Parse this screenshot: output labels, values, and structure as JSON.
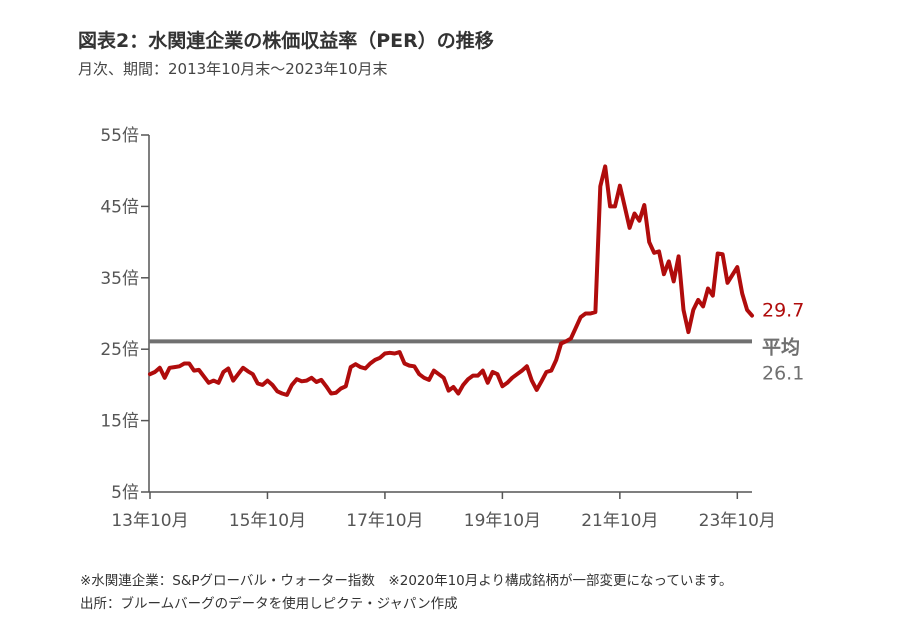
{
  "header": {
    "title": "図表2：水関連企業の株価収益率（PER）の推移",
    "subtitle": "月次、期間：2013年10月末～2023年10月末"
  },
  "notes": {
    "line1": "※水関連企業：S&Pグローバル・ウォーター指数　※2020年10月より構成銘柄が一部変更になっています。",
    "line2": "出所：ブルームバーグのデータを使用しピクテ・ジャパン作成"
  },
  "colors": {
    "series": "#b00c0c",
    "average": "#707070",
    "axis": "#555555"
  },
  "chart_data": {
    "type": "line",
    "title": "図表2：水関連企業の株価収益率（PER）の推移",
    "xlabel": "",
    "ylabel": "",
    "ylim": [
      5,
      55
    ],
    "y_ticks": [
      5,
      15,
      25,
      35,
      45,
      55
    ],
    "y_tick_labels": [
      "5倍",
      "15倍",
      "25倍",
      "35倍",
      "45倍",
      "55倍"
    ],
    "x_ticks": [
      "13年10月",
      "15年10月",
      "17年10月",
      "19年10月",
      "21年10月",
      "23年10月"
    ],
    "grid": false,
    "series": [
      {
        "values": [
          21.5,
          21.8,
          22.4,
          21.0,
          22.4,
          22.5,
          22.6,
          23.0,
          23.0,
          22.0,
          22.1,
          21.2,
          20.3,
          20.6,
          20.3,
          21.8,
          22.3,
          20.6,
          21.5,
          22.4,
          21.9,
          21.5,
          20.2,
          20.0,
          20.6,
          20.0,
          19.1,
          18.8,
          18.6,
          20.0,
          20.8,
          20.5,
          20.6,
          21.0,
          20.4,
          20.7,
          19.8,
          18.8,
          18.9,
          19.5,
          19.8,
          22.5,
          22.9,
          22.5,
          22.3,
          23.0,
          23.5,
          23.8,
          24.4,
          24.5,
          24.4,
          24.6,
          23.0,
          22.7,
          22.6,
          21.5,
          21.0,
          20.7,
          22.0,
          21.5,
          21.0,
          19.2,
          19.7,
          18.8,
          20.0,
          20.8,
          21.3,
          21.3,
          22.0,
          20.3,
          21.8,
          21.5,
          19.8,
          20.3,
          21.0,
          21.5,
          22.0,
          22.6,
          20.6,
          19.3,
          20.5,
          21.8,
          22.0,
          23.5,
          25.8,
          26.1,
          26.5,
          28.0,
          29.5,
          30.0,
          30.0,
          30.2,
          47.8,
          50.6,
          45.0,
          45.0,
          47.9,
          45.0,
          42.0,
          44.0,
          43.0,
          45.2,
          40.0,
          38.5,
          38.7,
          35.5,
          37.3,
          34.5,
          38.0,
          30.5,
          27.4,
          30.5,
          31.9,
          31.0,
          33.5,
          32.5,
          38.4,
          38.3,
          34.3,
          35.4,
          36.5,
          32.8,
          30.5,
          29.7
        ],
        "end_label": "29.7"
      }
    ],
    "average": {
      "value": 26.1,
      "label": "平均",
      "value_label": "26.1"
    }
  }
}
